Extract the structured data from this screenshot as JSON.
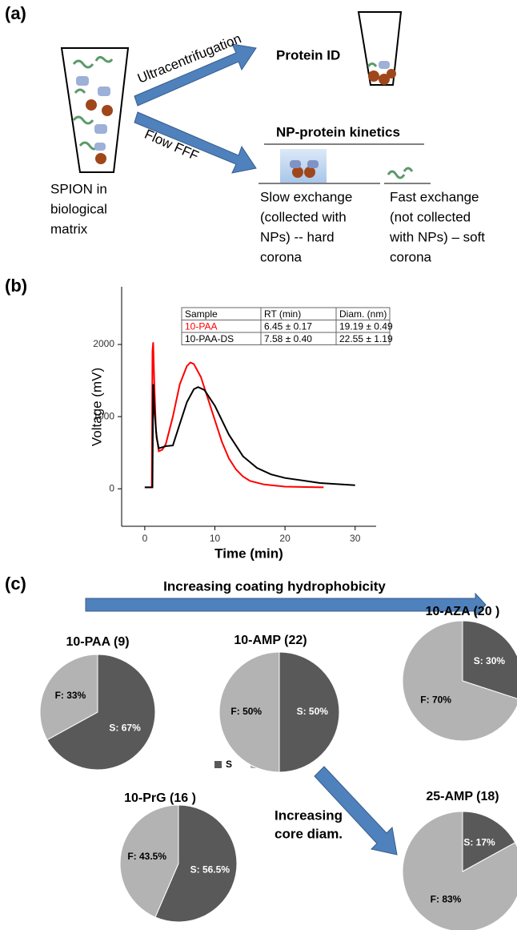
{
  "panel_a": {
    "label": "(a)",
    "left_label": [
      "SPION in",
      "biological",
      "matrix"
    ],
    "top_arrow_label": "Ultracentrifugation",
    "bottom_arrow_label": "Flow FFF",
    "top_result": "Protein ID",
    "bottom_result": "NP-protein kinetics",
    "slow_exchange": [
      "Slow exchange",
      "(collected with",
      "NPs) -- hard",
      "corona"
    ],
    "fast_exchange": [
      "Fast exchange",
      "(not collected",
      "with NPs) – soft",
      "corona"
    ]
  },
  "panel_b": {
    "label": "(b)"
  },
  "panel_c": {
    "label": "(c)",
    "top_annotation": "Increasing coating hydrophobicity",
    "side_annotation": [
      "Increasing",
      "core diam."
    ]
  },
  "chart_data": [
    {
      "type": "line",
      "x_label": "Time (min)",
      "y_label": "Voltage (mV)",
      "xlim": [
        -3.3,
        33
      ],
      "ylim": [
        -520,
        2800
      ],
      "xticks": [
        0,
        10,
        20,
        30
      ],
      "yticks": [
        0,
        1000,
        2000
      ],
      "table": {
        "header": [
          "Sample",
          "RT (min)",
          "Diam. (nm)"
        ],
        "rows": [
          [
            "6.45 ± 0.17",
            "19.19 ± 0.49"
          ],
          [
            "7.58 ± 0.40",
            "22.55 ± 1.19"
          ]
        ]
      },
      "series": [
        {
          "name": "10-PAA",
          "color": "#ff0000",
          "x": [
            0,
            1.0,
            1.1,
            1.2,
            1.35,
            1.6,
            2,
            2.5,
            3,
            4,
            5,
            6,
            6.5,
            7,
            8,
            9,
            10,
            11,
            12,
            13,
            14,
            15,
            17,
            20,
            25.5
          ],
          "values": [
            20,
            20,
            1900,
            2030,
            1500,
            800,
            520,
            540,
            620,
            1000,
            1450,
            1700,
            1750,
            1730,
            1550,
            1250,
            950,
            650,
            420,
            270,
            170,
            110,
            60,
            30,
            20
          ]
        },
        {
          "name": "10-PAA-DS",
          "color": "#000000",
          "x": [
            0,
            1.1,
            1.2,
            1.4,
            1.7,
            2,
            3,
            4,
            5,
            6,
            7,
            7.6,
            8.5,
            10,
            12,
            14,
            16,
            18,
            20,
            25,
            30
          ],
          "values": [
            20,
            20,
            1450,
            1050,
            700,
            560,
            590,
            600,
            900,
            1200,
            1380,
            1410,
            1370,
            1150,
            750,
            450,
            290,
            200,
            150,
            80,
            50
          ]
        }
      ]
    },
    {
      "type": "pie",
      "title": "10-PAA (9)",
      "categories": [
        "S",
        "F"
      ],
      "values": [
        67,
        33
      ],
      "value_labels": [
        "S: 67%",
        "F: 33%"
      ],
      "colors": [
        "#595959",
        "#b3b3b3"
      ],
      "legend": true
    },
    {
      "type": "pie",
      "title": "10-AMP (22)",
      "categories": [
        "S",
        "F"
      ],
      "values": [
        50,
        50
      ],
      "value_labels": [
        "S: 50%",
        "F: 50%"
      ],
      "colors": [
        "#595959",
        "#b3b3b3"
      ]
    },
    {
      "type": "pie",
      "title": "10-AZA (20 )",
      "categories": [
        "S",
        "F"
      ],
      "values": [
        30,
        70
      ],
      "value_labels": [
        "S:  30%",
        "F:  70%"
      ],
      "colors": [
        "#595959",
        "#b3b3b3"
      ]
    },
    {
      "type": "pie",
      "title": "10-PrG (16 )",
      "categories": [
        "S",
        "F"
      ],
      "values": [
        56.5,
        43.5
      ],
      "value_labels": [
        "S: 56.5%",
        "F:  43.5%"
      ],
      "colors": [
        "#595959",
        "#b3b3b3"
      ]
    },
    {
      "type": "pie",
      "title": "25-AMP (18)",
      "categories": [
        "S",
        "F"
      ],
      "values": [
        17,
        83
      ],
      "value_labels": [
        "S: 17%",
        "F:  83%"
      ],
      "colors": [
        "#595959",
        "#b3b3b3"
      ]
    }
  ]
}
